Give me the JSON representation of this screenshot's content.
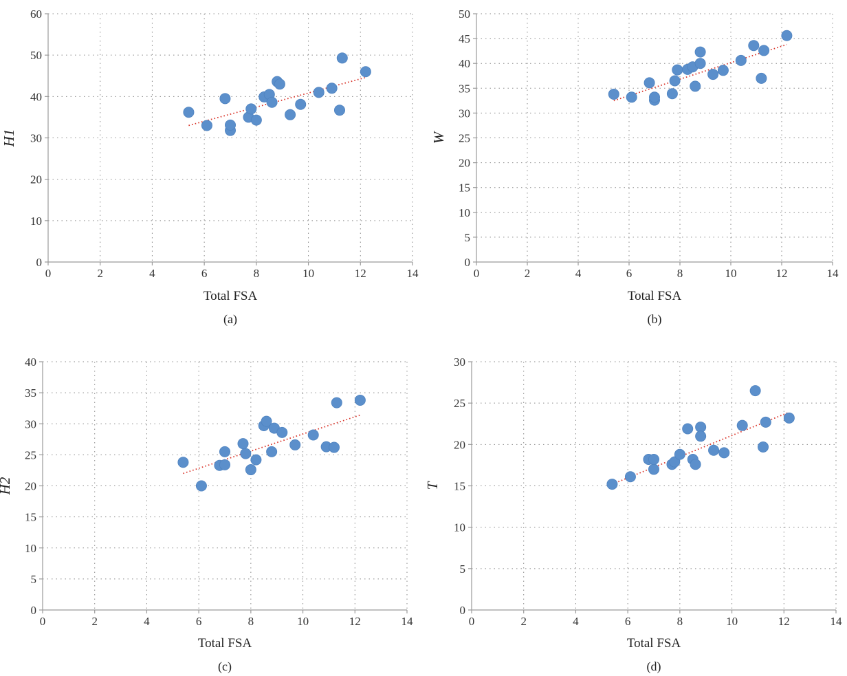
{
  "colors": {
    "points": "#5B8FCB",
    "trendline": "#D9352B",
    "grid": "#8A8A8A"
  },
  "chart_data": [
    {
      "type": "scatter",
      "caption": "(a)",
      "xlabel": "Total FSA",
      "ylabel": "H1",
      "xlim": [
        0,
        14
      ],
      "ylim": [
        0,
        60
      ],
      "xticks": [
        0,
        2,
        4,
        6,
        8,
        10,
        12,
        14
      ],
      "yticks": [
        0,
        10,
        20,
        30,
        40,
        50,
        60
      ],
      "grid": true,
      "trendline": {
        "x": [
          5.4,
          12.2
        ],
        "y": [
          33.0,
          44.6
        ]
      },
      "x": [
        5.4,
        6.1,
        6.8,
        7.0,
        7.0,
        7.7,
        7.8,
        8.0,
        8.3,
        8.5,
        8.6,
        8.8,
        8.9,
        9.3,
        9.7,
        10.4,
        10.9,
        11.2,
        11.3,
        12.2
      ],
      "y": [
        36.2,
        33.0,
        39.5,
        31.8,
        33.1,
        35.0,
        37.0,
        34.3,
        39.9,
        40.5,
        38.6,
        43.6,
        43.0,
        35.6,
        38.1,
        41.0,
        42.0,
        36.7,
        49.3,
        46.0
      ]
    },
    {
      "type": "scatter",
      "caption": "(b)",
      "xlabel": "Total FSA",
      "ylabel": "W",
      "xlim": [
        0,
        14
      ],
      "ylim": [
        0,
        50
      ],
      "xticks": [
        0,
        2,
        4,
        6,
        8,
        10,
        12,
        14
      ],
      "yticks": [
        0,
        5,
        10,
        15,
        20,
        25,
        30,
        35,
        40,
        45,
        50
      ],
      "grid": true,
      "trendline": {
        "x": [
          5.4,
          12.2
        ],
        "y": [
          32.5,
          43.8
        ]
      },
      "x": [
        5.4,
        6.1,
        6.8,
        7.0,
        7.0,
        7.7,
        7.8,
        7.9,
        8.3,
        8.5,
        8.6,
        8.8,
        8.8,
        9.3,
        9.7,
        10.4,
        10.9,
        11.2,
        11.3,
        12.2
      ],
      "y": [
        33.8,
        33.2,
        36.1,
        32.6,
        33.2,
        33.9,
        36.5,
        38.7,
        38.8,
        39.3,
        35.4,
        42.3,
        40.0,
        37.8,
        38.6,
        40.6,
        43.6,
        37.0,
        42.6,
        45.6
      ]
    },
    {
      "type": "scatter",
      "caption": "(c)",
      "xlabel": "Total FSA",
      "ylabel": "H2",
      "xlim": [
        0,
        14
      ],
      "ylim": [
        0,
        40
      ],
      "xticks": [
        0,
        2,
        4,
        6,
        8,
        10,
        12,
        14
      ],
      "yticks": [
        0,
        5,
        10,
        15,
        20,
        25,
        30,
        35,
        40
      ],
      "grid": true,
      "trendline": {
        "x": [
          5.4,
          12.2
        ],
        "y": [
          22.0,
          31.4
        ]
      },
      "x": [
        5.4,
        6.1,
        6.8,
        7.0,
        7.0,
        7.7,
        7.8,
        8.0,
        8.2,
        8.5,
        8.6,
        8.8,
        8.9,
        9.2,
        9.7,
        10.4,
        10.9,
        11.2,
        11.3,
        12.2
      ],
      "y": [
        23.8,
        20.0,
        23.3,
        23.4,
        25.5,
        26.8,
        25.2,
        22.6,
        24.2,
        29.7,
        30.4,
        25.5,
        29.3,
        28.6,
        26.6,
        28.2,
        26.3,
        26.2,
        33.4,
        33.8
      ]
    },
    {
      "type": "scatter",
      "caption": "(d)",
      "xlabel": "Total FSA",
      "ylabel": "T",
      "xlim": [
        0,
        14
      ],
      "ylim": [
        0,
        30
      ],
      "xticks": [
        0,
        2,
        4,
        6,
        8,
        10,
        12,
        14
      ],
      "yticks": [
        0,
        5,
        10,
        15,
        20,
        25,
        30
      ],
      "grid": true,
      "trendline": {
        "x": [
          5.4,
          12.2
        ],
        "y": [
          15.2,
          23.9
        ]
      },
      "x": [
        5.4,
        6.1,
        6.8,
        7.0,
        7.0,
        7.7,
        7.8,
        8.0,
        8.3,
        8.5,
        8.6,
        8.8,
        8.8,
        9.3,
        9.7,
        10.4,
        10.9,
        11.2,
        11.3,
        12.2
      ],
      "y": [
        15.2,
        16.1,
        18.2,
        17.0,
        18.2,
        17.6,
        17.9,
        18.8,
        21.9,
        18.2,
        17.6,
        22.1,
        21.0,
        19.3,
        19.0,
        22.3,
        26.5,
        19.7,
        22.7,
        23.2
      ]
    }
  ]
}
